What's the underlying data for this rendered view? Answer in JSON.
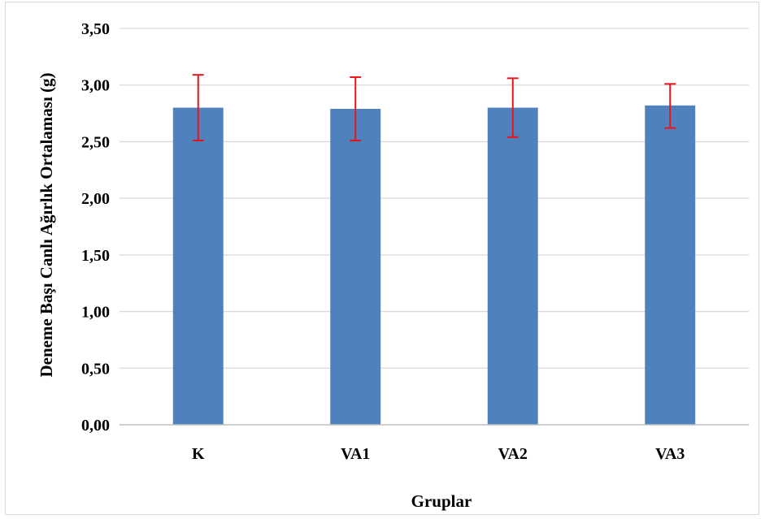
{
  "chart_data": {
    "type": "bar",
    "title": "",
    "xlabel": "Gruplar",
    "ylabel": "Deneme Başı Canlı Ağırlık Ortalaması (g)",
    "categories": [
      "K",
      "VA1",
      "VA2",
      "VA3"
    ],
    "values": [
      2.8,
      2.79,
      2.8,
      2.82
    ],
    "error_low": [
      2.51,
      2.51,
      2.54,
      2.62
    ],
    "error_high": [
      3.09,
      3.07,
      3.06,
      3.01
    ],
    "ylim": [
      0,
      3.5
    ],
    "yticks": [
      "0,00",
      "0,50",
      "1,00",
      "1,50",
      "2,00",
      "2,50",
      "3,00",
      "3,50"
    ],
    "ytick_values": [
      0,
      0.5,
      1,
      1.5,
      2,
      2.5,
      3,
      3.5
    ],
    "grid": true,
    "legend": "none",
    "colors": {
      "bar": "#4f81bd",
      "error_bar": "#e8141b",
      "grid": "#d9d9d9",
      "axis": "#bfbfbf"
    }
  }
}
